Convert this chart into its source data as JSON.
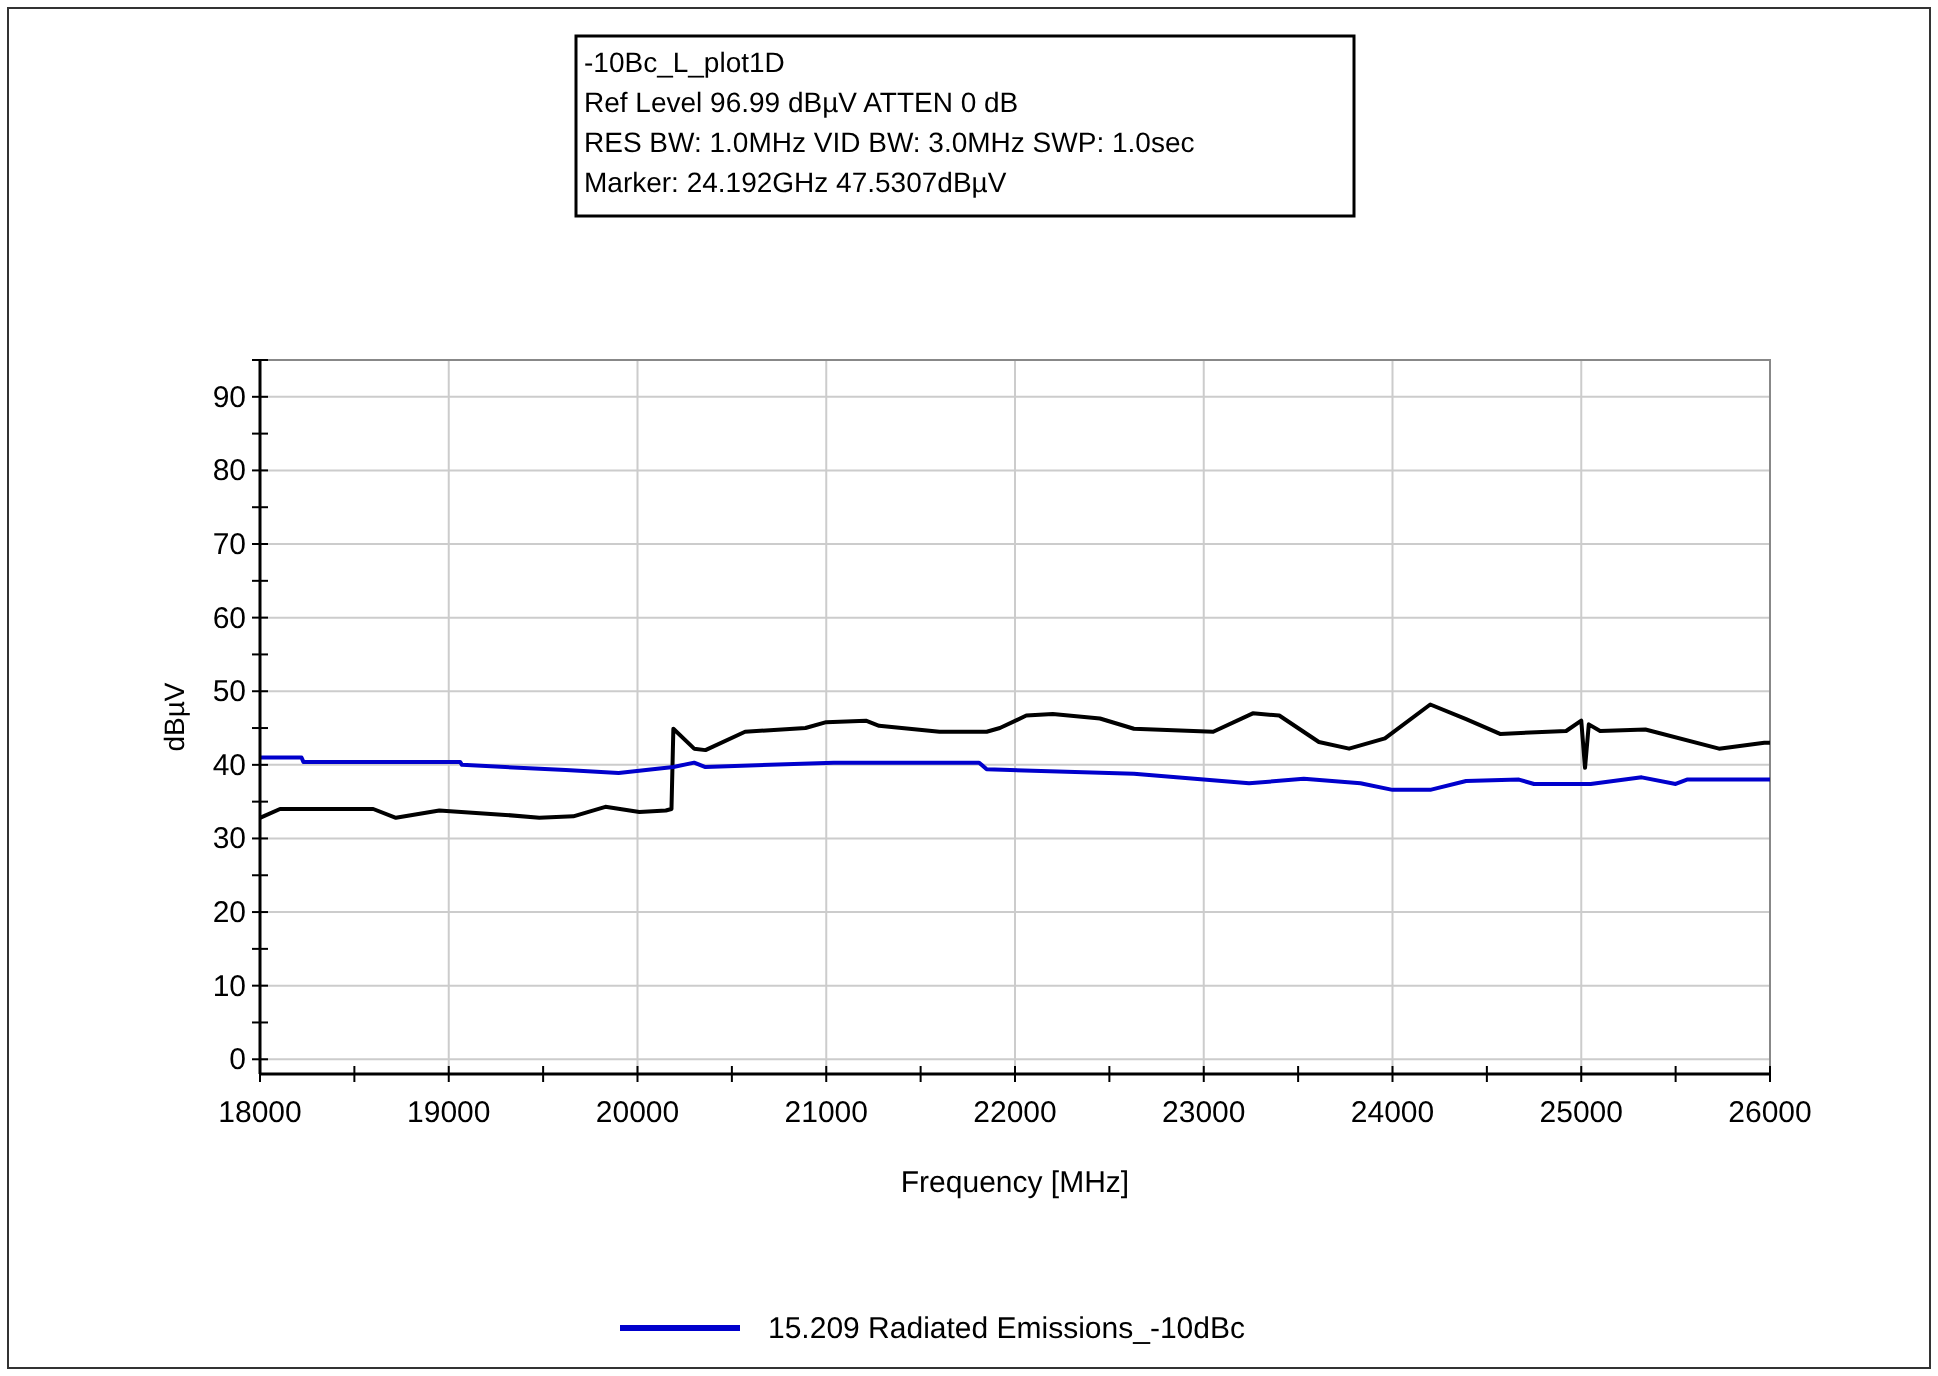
{
  "chart_data": {
    "type": "line",
    "annotations": [
      "-10Bc_L_plot1D",
      "Ref Level 96.99 dBµV    ATTEN 0 dB",
      "RES BW: 1.0MHz  VID BW: 3.0MHz  SWP: 1.0sec",
      "Marker: 24.192GHz  47.5307dBµV"
    ],
    "xlabel": "Frequency [MHz]",
    "ylabel": "dBµV",
    "xlim": [
      18000,
      26000
    ],
    "ylim": [
      -2,
      95
    ],
    "xticks": [
      18000,
      {
        "value": 18500,
        "label": null
      },
      19000,
      {
        "value": 19500,
        "label": null
      },
      20000,
      {
        "value": 20500,
        "label": null
      },
      21000,
      {
        "value": 21500,
        "label": null
      },
      22000,
      {
        "value": 22500,
        "label": null
      },
      23000,
      {
        "value": 23500,
        "label": null
      },
      24000,
      {
        "value": 24500,
        "label": null
      },
      25000,
      {
        "value": 25500,
        "label": null
      },
      26000
    ],
    "yticks": [
      0,
      {
        "value": 5,
        "label": null
      },
      10,
      {
        "value": 15,
        "label": null
      },
      20,
      {
        "value": 25,
        "label": null
      },
      30,
      {
        "value": 35,
        "label": null
      },
      40,
      {
        "value": 45,
        "label": null
      },
      50,
      {
        "value": 55,
        "label": null
      },
      60,
      {
        "value": 65,
        "label": null
      },
      70,
      {
        "value": 75,
        "label": null
      },
      80,
      {
        "value": 85,
        "label": null
      },
      90,
      {
        "value": 95,
        "label": null
      }
    ],
    "grid": true,
    "legend": "bottom",
    "series": [
      {
        "color": "#000000",
        "x": [
          18000,
          18106,
          18600,
          18720,
          18950,
          19300,
          19480,
          19660,
          19830,
          20010,
          20150,
          20180,
          20190,
          20300,
          20360,
          20570,
          20890,
          21000,
          21210,
          21280,
          21600,
          21850,
          21920,
          22060,
          22200,
          22450,
          22630,
          23050,
          23260,
          23400,
          23610,
          23770,
          23960,
          24200,
          24390,
          24570,
          24920,
          25000,
          25020,
          25040,
          25100,
          25340,
          25730,
          25970,
          26000
        ],
        "values": [
          32.8,
          34.0,
          34.0,
          32.8,
          33.8,
          33.2,
          32.8,
          33.0,
          34.3,
          33.6,
          33.8,
          34.0,
          44.9,
          42.2,
          42.0,
          44.5,
          45.0,
          45.8,
          46.0,
          45.3,
          44.5,
          44.5,
          45.0,
          46.7,
          46.9,
          46.3,
          44.9,
          44.5,
          47.0,
          46.7,
          43.1,
          42.2,
          43.6,
          48.2,
          46.2,
          44.2,
          44.6,
          46.0,
          39.6,
          45.5,
          44.6,
          44.8,
          42.2,
          43.0,
          43.0
        ]
      },
      {
        "name": "15.209 Radiated Emissions_-10dBc",
        "color": "#0000cc",
        "x": [
          18000,
          18220,
          18230,
          19060,
          19070,
          19620,
          19900,
          20190,
          20300,
          20360,
          21040,
          21810,
          21850,
          22630,
          23240,
          23530,
          23830,
          24000,
          24200,
          24390,
          24670,
          24750,
          25050,
          25320,
          25500,
          25560,
          26000
        ],
        "values": [
          41.0,
          41.0,
          40.4,
          40.4,
          40.0,
          39.3,
          38.9,
          39.7,
          40.3,
          39.7,
          40.3,
          40.3,
          39.4,
          38.8,
          37.5,
          38.1,
          37.5,
          36.6,
          36.6,
          37.8,
          38.0,
          37.4,
          37.4,
          38.3,
          37.4,
          38.0,
          38.0
        ]
      }
    ]
  }
}
